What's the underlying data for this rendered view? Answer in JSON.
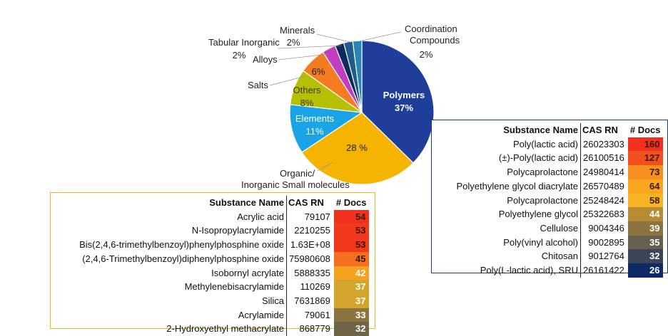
{
  "chart_data": [
    {
      "type": "pie",
      "title": "",
      "slices": [
        {
          "label": "Polymers",
          "pct_label": "37%",
          "value": 37,
          "color": "#1f3e9a"
        },
        {
          "label": "Organic/ Inorganic Small molecules",
          "label_lines": [
            "Organic/",
            "Inorganic Small molecules"
          ],
          "pct_label": "28 %",
          "value": 28,
          "color": "#f4b400"
        },
        {
          "label": "Elements",
          "pct_label": "11%",
          "value": 11,
          "color": "#1ba3e8"
        },
        {
          "label": "Others",
          "pct_label": "8%",
          "value": 8,
          "color": "#b5c000"
        },
        {
          "label": "Salts",
          "pct_label": "6%",
          "value": 6,
          "color": "#f47b20"
        },
        {
          "label": "Alloys",
          "pct_label": "",
          "value": 3,
          "color": "#c03fbf"
        },
        {
          "label": "Tabular Inorganic",
          "pct_label": "2%",
          "value": 2,
          "color": "#0d2a5c"
        },
        {
          "label": "Minerals",
          "pct_label": "2%",
          "value": 2,
          "color": "#1f5c8c"
        },
        {
          "label": "Coordination Compounds",
          "label_lines": [
            "Coordination",
            "Compounds"
          ],
          "pct_label": "2%",
          "value": 2,
          "color": "#2a86b0"
        }
      ]
    },
    {
      "type": "table",
      "columns": [
        "Substance Name",
        "CAS RN",
        "# Docs"
      ],
      "rows": [
        {
          "name": "Acrylic acid",
          "cas": "79107",
          "docs": 54,
          "color": "#f2311c"
        },
        {
          "name": "N-Isopropylacrylamide",
          "cas": "2210255",
          "docs": 53,
          "color": "#f2381d"
        },
        {
          "name": "Bis(2,4,6-trimethylbenzoyl)phenylphosphine oxide",
          "cas": "1.63E+08",
          "docs": 53,
          "color": "#f2381d"
        },
        {
          "name": "(2,4,6-Trimethylbenzoyl)diphenylphosphine oxide",
          "cas": "75980608",
          "docs": 45,
          "color": "#f66e1f"
        },
        {
          "name": "Isobornyl acrylate",
          "cas": "5888335",
          "docs": 42,
          "color": "#f7a21f"
        },
        {
          "name": "Methylenebisacrylamide",
          "cas": "110269",
          "docs": 37,
          "color": "#d3a52c"
        },
        {
          "name": "Silica",
          "cas": "7631869",
          "docs": 37,
          "color": "#d3a52c"
        },
        {
          "name": "Acrylamide",
          "cas": "79061",
          "docs": 33,
          "color": "#8b7440"
        },
        {
          "name": "2-Hydroxyethyl methacrylate",
          "cas": "868779",
          "docs": 32,
          "color": "#6f6445"
        }
      ]
    },
    {
      "type": "table",
      "columns": [
        "Substance Name",
        "CAS RN",
        "# Docs"
      ],
      "rows": [
        {
          "name": "Poly(lactic acid)",
          "cas": "26023303",
          "docs": 160,
          "color": "#f2301d"
        },
        {
          "name": "(±)-Poly(lactic acid)",
          "cas": "26100516",
          "docs": 127,
          "color": "#f3501e"
        },
        {
          "name": "Polycaprolactone",
          "cas": "24980414",
          "docs": 73,
          "color": "#f7901f"
        },
        {
          "name": "Polyethylene glycol diacrylate",
          "cas": "26570489",
          "docs": 64,
          "color": "#f8a620"
        },
        {
          "name": "Polycaprolactone",
          "cas": "25248424",
          "docs": 58,
          "color": "#f6b424"
        },
        {
          "name": "Polyethylene glycol",
          "cas": "25322683",
          "docs": 44,
          "color": "#b68d34"
        },
        {
          "name": "Cellulose",
          "cas": "9004346",
          "docs": 39,
          "color": "#8a7340"
        },
        {
          "name": "Poly(vinyl alcohol)",
          "cas": "9002895",
          "docs": 35,
          "color": "#676050"
        },
        {
          "name": "Chitosan",
          "cas": "9012764",
          "docs": 32,
          "color": "#3c4458"
        },
        {
          "name": "Poly(L-lactic acid), SRU",
          "cas": "26161422",
          "docs": 26,
          "color": "#0e2a66"
        }
      ]
    }
  ]
}
